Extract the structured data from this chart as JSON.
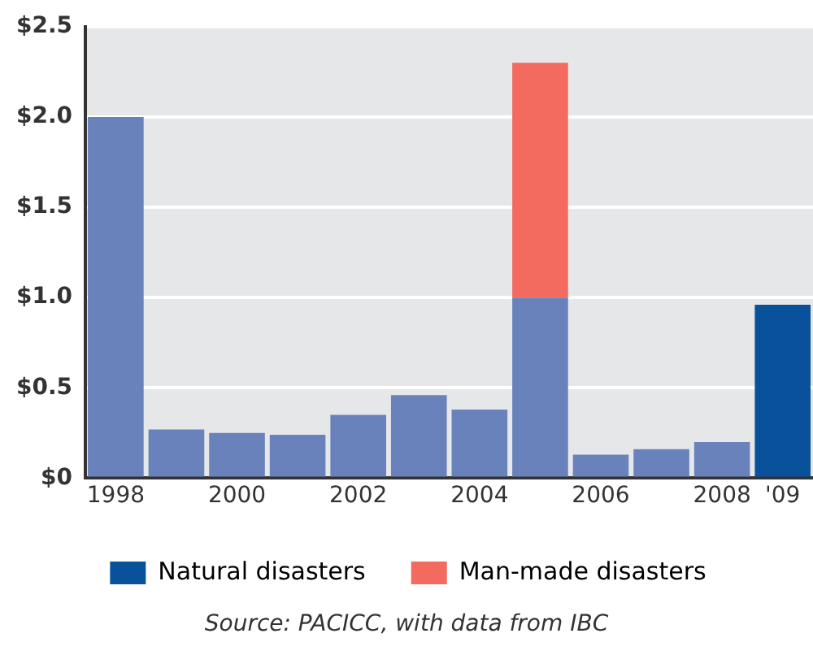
{
  "chart_data": {
    "type": "bar",
    "stacked": true,
    "categories": [
      "1998",
      null,
      "2000",
      null,
      "2002",
      null,
      "2004",
      null,
      "2006",
      null,
      "2008",
      "'09"
    ],
    "series": [
      {
        "name": "Natural disasters",
        "color": "#0a519c",
        "colors": [
          "#6a82bc",
          "#6a82bc",
          "#6a82bc",
          "#6a82bc",
          "#6a82bc",
          "#6a82bc",
          "#6a82bc",
          "#6a82bc",
          "#6a82bc",
          "#6a82bc",
          "#6a82bc",
          "#0a519c"
        ],
        "values": [
          2.0,
          0.27,
          0.25,
          0.24,
          0.35,
          0.46,
          0.38,
          1.0,
          0.13,
          0.16,
          0.2,
          0.96
        ]
      },
      {
        "name": "Man-made disasters",
        "color": "#f26b5e",
        "values": [
          null,
          null,
          null,
          null,
          null,
          null,
          null,
          1.3,
          null,
          null,
          null,
          null
        ]
      }
    ],
    "ylim": [
      0,
      2.5
    ],
    "yticks": [
      {
        "value": 0,
        "label": "$0"
      },
      {
        "value": 0.5,
        "label": "$0.5"
      },
      {
        "value": 1,
        "label": "$1.0"
      },
      {
        "value": 1.5,
        "label": "$1.5"
      },
      {
        "value": 2,
        "label": "$2.0"
      },
      {
        "value": 2.5,
        "label": "$2.5"
      }
    ],
    "grid": "y",
    "legend": "bottom",
    "annotations": [
      "Source: PACICC, with data from IBC"
    ]
  }
}
